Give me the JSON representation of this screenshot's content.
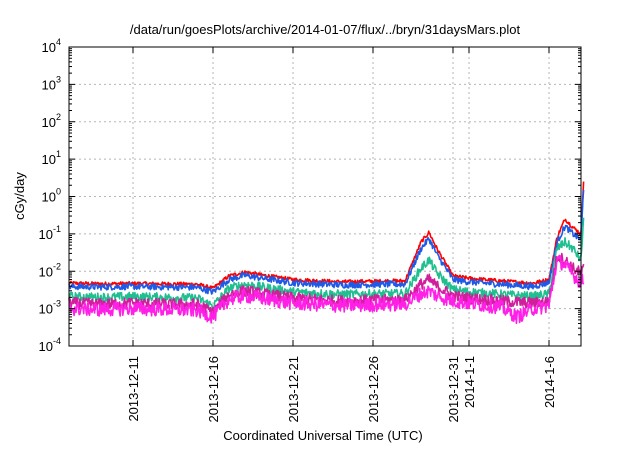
{
  "chart_data": {
    "type": "line",
    "title": "/data/run/goesPlots/archive/2014-01-07/flux/../bryn/31daysMars.plot",
    "xlabel": "Coordinated Universal Time (UTC)",
    "ylabel": "cGy/day",
    "yscale": "log",
    "ylim": [
      0.0001,
      10000
    ],
    "xlim": [
      "2013-12-07",
      "2014-01-08"
    ],
    "grid": true,
    "x_ticks": [
      {
        "date": "2013-12-11",
        "label": "2013-12-11"
      },
      {
        "date": "2013-12-16",
        "label": "2013-12-16"
      },
      {
        "date": "2013-12-21",
        "label": "2013-12-21"
      },
      {
        "date": "2013-12-26",
        "label": "2013-12-26"
      },
      {
        "date": "2013-12-31",
        "label": "2013-12-31"
      },
      {
        "date": "2014-01-01",
        "label": "2014-1-1"
      },
      {
        "date": "2014-01-06",
        "label": "2014-1-6"
      }
    ],
    "y_ticks": [
      {
        "value": 0.0001,
        "base": "10",
        "exp": "-4"
      },
      {
        "value": 0.001,
        "base": "10",
        "exp": "-3"
      },
      {
        "value": 0.01,
        "base": "10",
        "exp": "-2"
      },
      {
        "value": 0.1,
        "base": "10",
        "exp": "-1"
      },
      {
        "value": 1,
        "base": "10",
        "exp": "0"
      },
      {
        "value": 10,
        "base": "10",
        "exp": "1"
      },
      {
        "value": 100,
        "base": "10",
        "exp": "2"
      },
      {
        "value": 1000,
        "base": "10",
        "exp": "3"
      },
      {
        "value": 10000,
        "base": "10",
        "exp": "4"
      }
    ],
    "series": [
      {
        "color": "#ff0000",
        "points": [
          [
            "2013-12-07",
            0.0048
          ],
          [
            "2013-12-09",
            0.0046
          ],
          [
            "2013-12-11",
            0.0047
          ],
          [
            "2013-12-13",
            0.0046
          ],
          [
            "2013-12-15",
            0.0045
          ],
          [
            "2013-12-16",
            0.0035
          ],
          [
            "2013-12-17",
            0.0075
          ],
          [
            "2013-12-18",
            0.0095
          ],
          [
            "2013-12-19",
            0.008
          ],
          [
            "2013-12-21",
            0.006
          ],
          [
            "2013-12-24",
            0.0052
          ],
          [
            "2013-12-27",
            0.0055
          ],
          [
            "2013-12-28",
            0.0055
          ],
          [
            "2013-12-29",
            0.06
          ],
          [
            "2013-12-29 12:00",
            0.11
          ],
          [
            "2013-12-30",
            0.04
          ],
          [
            "2013-12-31",
            0.0075
          ],
          [
            "2014-01-01",
            0.0065
          ],
          [
            "2014-01-03",
            0.0055
          ],
          [
            "2014-01-05",
            0.0048
          ],
          [
            "2014-01-06",
            0.006
          ],
          [
            "2014-01-06 12:00",
            0.08
          ],
          [
            "2014-01-07",
            0.25
          ],
          [
            "2014-01-07 12:00",
            0.15
          ],
          [
            "2014-01-08",
            0.1
          ],
          [
            "2014-01-08 04:00",
            3.0
          ]
        ]
      },
      {
        "color": "#1e5ae6",
        "points": [
          [
            "2013-12-07",
            0.0039
          ],
          [
            "2013-12-09",
            0.0038
          ],
          [
            "2013-12-11",
            0.0039
          ],
          [
            "2013-12-13",
            0.0038
          ],
          [
            "2013-12-15",
            0.0037
          ],
          [
            "2013-12-16",
            0.0028
          ],
          [
            "2013-12-17",
            0.006
          ],
          [
            "2013-12-18",
            0.0078
          ],
          [
            "2013-12-19",
            0.0066
          ],
          [
            "2013-12-21",
            0.0049
          ],
          [
            "2013-12-24",
            0.0043
          ],
          [
            "2013-12-27",
            0.0045
          ],
          [
            "2013-12-28",
            0.0045
          ],
          [
            "2013-12-29",
            0.04
          ],
          [
            "2013-12-29 12:00",
            0.075
          ],
          [
            "2013-12-30",
            0.028
          ],
          [
            "2013-12-31",
            0.006
          ],
          [
            "2014-01-01",
            0.0052
          ],
          [
            "2014-01-03",
            0.0045
          ],
          [
            "2014-01-05",
            0.0039
          ],
          [
            "2014-01-06",
            0.005
          ],
          [
            "2014-01-06 12:00",
            0.06
          ],
          [
            "2014-01-07",
            0.16
          ],
          [
            "2014-01-07 12:00",
            0.1
          ],
          [
            "2014-01-08",
            0.07
          ],
          [
            "2014-01-08 04:00",
            2.0
          ]
        ]
      },
      {
        "color": "#1fbf8f",
        "points": [
          [
            "2013-12-07",
            0.0021
          ],
          [
            "2013-12-09",
            0.002
          ],
          [
            "2013-12-11",
            0.0021
          ],
          [
            "2013-12-13",
            0.002
          ],
          [
            "2013-12-15",
            0.0019
          ],
          [
            "2013-12-16",
            0.0012
          ],
          [
            "2013-12-17",
            0.0035
          ],
          [
            "2013-12-18",
            0.0045
          ],
          [
            "2013-12-19",
            0.0038
          ],
          [
            "2013-12-21",
            0.0028
          ],
          [
            "2013-12-24",
            0.0024
          ],
          [
            "2013-12-27",
            0.0025
          ],
          [
            "2013-12-28",
            0.0025
          ],
          [
            "2013-12-29",
            0.012
          ],
          [
            "2013-12-29 12:00",
            0.02
          ],
          [
            "2013-12-30",
            0.009
          ],
          [
            "2013-12-31",
            0.0032
          ],
          [
            "2014-01-01",
            0.0028
          ],
          [
            "2014-01-03",
            0.0024
          ],
          [
            "2014-01-05",
            0.0021
          ],
          [
            "2014-01-06",
            0.0025
          ],
          [
            "2014-01-06 12:00",
            0.04
          ],
          [
            "2014-01-07",
            0.06
          ],
          [
            "2014-01-07 12:00",
            0.04
          ],
          [
            "2014-01-08",
            0.02
          ],
          [
            "2014-01-08 04:00",
            0.3
          ]
        ]
      },
      {
        "color": "#d01f9a",
        "points": [
          [
            "2013-12-07",
            0.0014
          ],
          [
            "2013-12-09",
            0.0013
          ],
          [
            "2013-12-11",
            0.0014
          ],
          [
            "2013-12-13",
            0.0013
          ],
          [
            "2013-12-15",
            0.0013
          ],
          [
            "2013-12-16",
            0.0008
          ],
          [
            "2013-12-17",
            0.0024
          ],
          [
            "2013-12-18",
            0.003
          ],
          [
            "2013-12-19",
            0.0025
          ],
          [
            "2013-12-21",
            0.0019
          ],
          [
            "2013-12-24",
            0.0016
          ],
          [
            "2013-12-27",
            0.0017
          ],
          [
            "2013-12-28",
            0.0017
          ],
          [
            "2013-12-29",
            0.0045
          ],
          [
            "2013-12-29 12:00",
            0.006
          ],
          [
            "2013-12-30",
            0.004
          ],
          [
            "2013-12-31",
            0.0022
          ],
          [
            "2014-01-01",
            0.0019
          ],
          [
            "2014-01-03",
            0.0016
          ],
          [
            "2014-01-05",
            0.0014
          ],
          [
            "2014-01-06",
            0.0016
          ],
          [
            "2014-01-06 12:00",
            0.025
          ],
          [
            "2014-01-07",
            0.02
          ],
          [
            "2014-01-07 12:00",
            0.012
          ],
          [
            "2014-01-08",
            0.009
          ],
          [
            "2014-01-08 04:00",
            0.012
          ]
        ]
      },
      {
        "color": "#ff1fe6",
        "points": [
          [
            "2013-12-07",
            0.001
          ],
          [
            "2013-12-09",
            0.00095
          ],
          [
            "2013-12-11",
            0.001
          ],
          [
            "2013-12-13",
            0.00095
          ],
          [
            "2013-12-15",
            0.0009
          ],
          [
            "2013-12-16",
            0.0006
          ],
          [
            "2013-12-17",
            0.0018
          ],
          [
            "2013-12-18",
            0.0022
          ],
          [
            "2013-12-19",
            0.0019
          ],
          [
            "2013-12-21",
            0.0014
          ],
          [
            "2013-12-24",
            0.0012
          ],
          [
            "2013-12-27",
            0.0013
          ],
          [
            "2013-12-28",
            0.0013
          ],
          [
            "2013-12-29",
            0.0025
          ],
          [
            "2013-12-29 12:00",
            0.003
          ],
          [
            "2013-12-30",
            0.0022
          ],
          [
            "2013-12-31",
            0.0016
          ],
          [
            "2014-01-01",
            0.0014
          ],
          [
            "2014-01-03",
            0.0011
          ],
          [
            "2014-01-04",
            0.0006
          ],
          [
            "2014-01-05",
            0.001
          ],
          [
            "2014-01-06",
            0.0012
          ],
          [
            "2014-01-06 12:00",
            0.02
          ],
          [
            "2014-01-07",
            0.015
          ],
          [
            "2014-01-07 12:00",
            0.008
          ],
          [
            "2014-01-08",
            0.005
          ],
          [
            "2014-01-08 04:00",
            0.006
          ]
        ]
      }
    ]
  }
}
